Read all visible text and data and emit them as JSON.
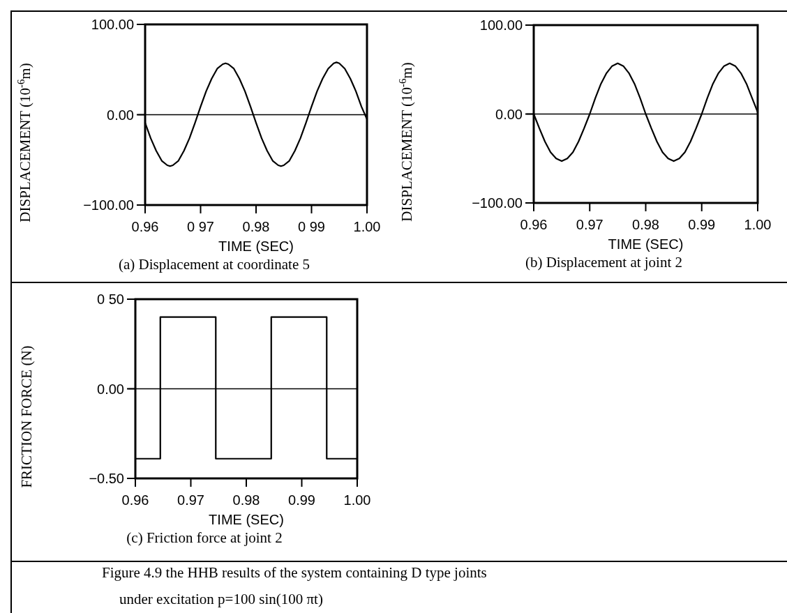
{
  "chart_data": [
    {
      "type": "line",
      "title": "(a) Displacement at coordinate 5",
      "xlabel": "TIME (SEC)",
      "ylabel": "DISPLACEMENT (10$^{-6}$m)",
      "xlim": [
        0.96,
        1.0
      ],
      "ylim": [
        -100,
        100
      ],
      "xticks": [
        {
          "value": 0.96,
          "label": "0.96"
        },
        {
          "value": 0.97,
          "label": "0 97"
        },
        {
          "value": 0.98,
          "label": "0.98"
        },
        {
          "value": 0.99,
          "label": "0 99"
        },
        {
          "value": 1.0,
          "label": "1.00"
        }
      ],
      "yticks": [
        {
          "value": -100,
          "label": "−100.00"
        },
        {
          "value": 0,
          "label": "0.00"
        },
        {
          "value": 100,
          "label": "100.00"
        }
      ],
      "ref_lines": [
        {
          "axis": "y",
          "value": 0,
          "color": "#000000"
        }
      ],
      "series": [
        {
          "color": "#000000",
          "x": [
            0.96,
            0.961,
            0.962,
            0.963,
            0.964,
            0.9645,
            0.965,
            0.966,
            0.967,
            0.968,
            0.969,
            0.97,
            0.971,
            0.972,
            0.973,
            0.974,
            0.9745,
            0.975,
            0.976,
            0.977,
            0.978,
            0.979,
            0.98,
            0.981,
            0.982,
            0.983,
            0.984,
            0.9845,
            0.985,
            0.986,
            0.987,
            0.988,
            0.989,
            0.99,
            0.991,
            0.992,
            0.993,
            0.994,
            0.9945,
            0.995,
            0.996,
            0.997,
            0.998,
            0.999,
            1.0
          ],
          "values": [
            -9,
            -26,
            -40,
            -51,
            -56,
            -57,
            -56,
            -51,
            -40,
            -26,
            -9,
            9,
            26,
            40,
            51,
            56,
            57,
            56,
            51,
            40,
            26,
            9,
            -9,
            -26,
            -40,
            -51,
            -56,
            -57,
            -56,
            -51,
            -40,
            -26,
            -9,
            9,
            26,
            40,
            51,
            57,
            58,
            57,
            51,
            40,
            26,
            9,
            -5
          ]
        }
      ]
    },
    {
      "type": "line",
      "title": "(b) Displacement at joint 2",
      "xlabel": "TIME (SEC)",
      "ylabel": "DISPLACEMENT (10$^{-6}$m)",
      "xlim": [
        0.96,
        1.0
      ],
      "ylim": [
        -100,
        100
      ],
      "xticks": [
        {
          "value": 0.96,
          "label": "0.96"
        },
        {
          "value": 0.97,
          "label": "0.97"
        },
        {
          "value": 0.98,
          "label": "0.98"
        },
        {
          "value": 0.99,
          "label": "0.99"
        },
        {
          "value": 1.0,
          "label": "1.00"
        }
      ],
      "yticks": [
        {
          "value": -100,
          "label": "−100.00"
        },
        {
          "value": 0,
          "label": "0.00"
        },
        {
          "value": 100,
          "label": "100.00"
        }
      ],
      "ref_lines": [
        {
          "axis": "y",
          "value": 0,
          "color": "#000000"
        }
      ],
      "series": [
        {
          "color": "#000000",
          "x": [
            0.96,
            0.961,
            0.962,
            0.963,
            0.964,
            0.965,
            0.966,
            0.967,
            0.968,
            0.969,
            0.97,
            0.971,
            0.972,
            0.973,
            0.974,
            0.975,
            0.976,
            0.977,
            0.978,
            0.979,
            0.98,
            0.981,
            0.982,
            0.983,
            0.984,
            0.985,
            0.986,
            0.987,
            0.988,
            0.989,
            0.99,
            0.991,
            0.992,
            0.993,
            0.994,
            0.995,
            0.996,
            0.997,
            0.998,
            0.999,
            1.0
          ],
          "values": [
            0,
            -16,
            -31,
            -43,
            -50,
            -53,
            -50,
            -43,
            -31,
            -16,
            0,
            18,
            34,
            46,
            54,
            57,
            54,
            46,
            34,
            18,
            0,
            -16,
            -31,
            -43,
            -50,
            -53,
            -50,
            -43,
            -31,
            -16,
            0,
            18,
            34,
            46,
            54,
            57,
            54,
            46,
            34,
            18,
            2
          ]
        }
      ]
    },
    {
      "type": "line",
      "title": "(c) Friction force at joint 2",
      "xlabel": "TIME (SEC)",
      "ylabel": "FRICTION FORCE (N)",
      "xlim": [
        0.96,
        1.0
      ],
      "ylim": [
        -0.5,
        0.5
      ],
      "xticks": [
        {
          "value": 0.96,
          "label": "0.96"
        },
        {
          "value": 0.97,
          "label": "0.97"
        },
        {
          "value": 0.98,
          "label": "0.98"
        },
        {
          "value": 0.99,
          "label": "0.99"
        },
        {
          "value": 1.0,
          "label": "1.00"
        }
      ],
      "yticks": [
        {
          "value": -0.5,
          "label": "−0.50"
        },
        {
          "value": 0,
          "label": "0.00"
        },
        {
          "value": 0.5,
          "label": "0 50"
        }
      ],
      "ref_lines": [
        {
          "axis": "y",
          "value": 0,
          "color": "#000000"
        }
      ],
      "annotations": [
        "Figure 4.9 the HHB results of the system containing D type joints",
        "under excitation p=100 sin(100 πt)"
      ],
      "series": [
        {
          "color": "#000000",
          "x": [
            0.96,
            0.9645,
            0.9645,
            0.9745,
            0.9745,
            0.9845,
            0.9845,
            0.9945,
            0.9945,
            1.0
          ],
          "values": [
            -0.39,
            -0.39,
            0.4,
            0.4,
            -0.39,
            -0.39,
            0.4,
            0.4,
            -0.39,
            -0.39
          ]
        }
      ]
    }
  ]
}
